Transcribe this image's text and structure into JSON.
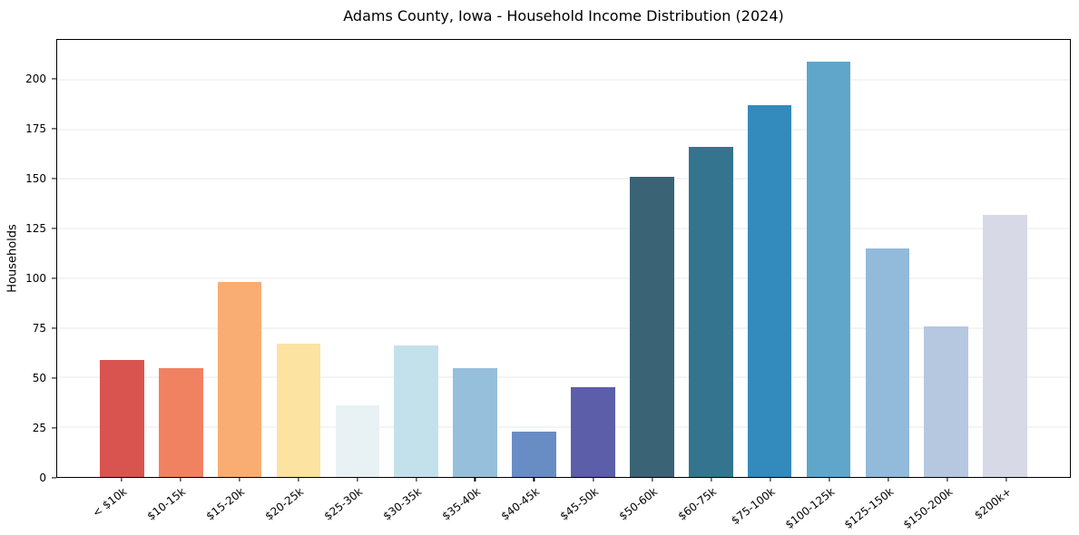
{
  "chart_data": {
    "type": "bar",
    "title": "Adams County, Iowa - Household Income Distribution (2024)",
    "xlabel": "",
    "ylabel": "Households",
    "categories": [
      "< $10k",
      "$10-15k",
      "$15-20k",
      "$20-25k",
      "$25-30k",
      "$30-35k",
      "$35-40k",
      "$40-45k",
      "$45-50k",
      "$50-60k",
      "$60-75k",
      "$75-100k",
      "$100-125k",
      "$125-150k",
      "$150-200k",
      "$200k+"
    ],
    "values": [
      59,
      55,
      98,
      67,
      36,
      66,
      55,
      23,
      45,
      151,
      166,
      187,
      209,
      115,
      76,
      132
    ],
    "bar_colors": [
      "#d9544f",
      "#f08261",
      "#f9ad73",
      "#fde3a2",
      "#e8f2f4",
      "#c3e1eb",
      "#95bfda",
      "#688dc4",
      "#5c5ea9",
      "#3a6375",
      "#35748f",
      "#338abc",
      "#60a6cb",
      "#92badb",
      "#b6c7e0",
      "#d7d9e7"
    ],
    "ylim": [
      0,
      220
    ],
    "yticks": [
      0,
      25,
      50,
      75,
      100,
      125,
      150,
      175,
      200
    ],
    "grid": "horizontal",
    "legend": "none",
    "background": "#ffffff",
    "plot_border_color": "#000000",
    "grid_color": "#eaeaea"
  }
}
